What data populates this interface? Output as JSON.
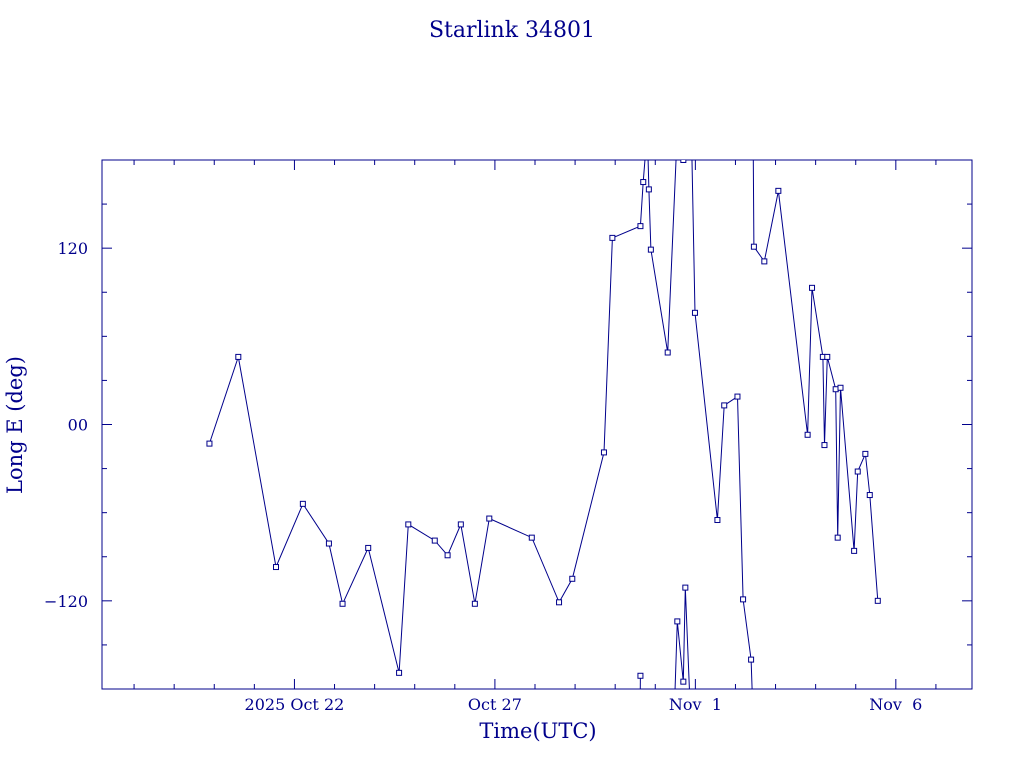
{
  "chart_data": {
    "type": "line",
    "title": "Starlink 34801",
    "xlabel": "Time(UTC)",
    "ylabel": "Long E (deg)",
    "color": "#00008b",
    "xlim": [
      -0.8,
      20.9
    ],
    "ylim": [
      -180,
      180
    ],
    "x_ticks": [
      {
        "x": 4.0,
        "label": "2025 Oct 22"
      },
      {
        "x": 9.0,
        "label": "Oct 27"
      },
      {
        "x": 14.0,
        "label": "Nov  1"
      },
      {
        "x": 19.0,
        "label": "Nov  6"
      }
    ],
    "y_ticks": [
      {
        "y": 120,
        "label": "120"
      },
      {
        "y": 0,
        "label": "00"
      },
      {
        "y": -120,
        "label": "−120"
      }
    ],
    "marker": "square",
    "series": [
      {
        "points": [
          [
            1.88,
            -13
          ],
          [
            2.6,
            46
          ],
          [
            3.54,
            -97
          ],
          [
            4.21,
            -54
          ],
          [
            4.86,
            -81
          ],
          [
            5.2,
            -122
          ],
          [
            5.84,
            -84
          ],
          [
            6.61,
            -169
          ],
          [
            6.84,
            -68
          ],
          [
            7.5,
            -79
          ],
          [
            7.82,
            -89
          ],
          [
            8.15,
            -68
          ],
          [
            8.5,
            -122
          ],
          [
            8.86,
            -64
          ],
          [
            9.92,
            -77
          ],
          [
            10.6,
            -121
          ],
          [
            10.93,
            -105
          ],
          [
            11.72,
            -19
          ],
          [
            11.93,
            127
          ],
          [
            12.63,
            135
          ],
          [
            12.7,
            165
          ],
          [
            12.8,
            200
          ]
        ]
      },
      {
        "points": [
          [
            12.62,
            -200
          ],
          [
            12.63,
            -171
          ]
        ]
      },
      {
        "points": [
          [
            12.8,
            200
          ],
          [
            12.84,
            160
          ],
          [
            12.89,
            119
          ],
          [
            13.31,
            49
          ],
          [
            13.55,
            200
          ],
          [
            13.7,
            180
          ],
          [
            13.9,
            200
          ]
        ]
      },
      {
        "points": [
          [
            13.47,
            -200
          ],
          [
            13.55,
            -134
          ],
          [
            13.7,
            -175
          ],
          [
            13.75,
            -111
          ],
          [
            13.88,
            -200
          ]
        ]
      },
      {
        "points": [
          [
            13.9,
            200
          ],
          [
            13.99,
            76
          ],
          [
            14.55,
            -65
          ],
          [
            14.72,
            13
          ],
          [
            15.05,
            19
          ],
          [
            15.19,
            -119
          ],
          [
            15.39,
            -160
          ],
          [
            15.44,
            -200
          ]
        ]
      },
      {
        "points": [
          [
            15.44,
            200
          ],
          [
            15.46,
            121
          ],
          [
            15.72,
            111
          ],
          [
            16.07,
            159
          ],
          [
            16.8,
            -7
          ],
          [
            16.91,
            93
          ],
          [
            17.18,
            46
          ],
          [
            17.22,
            -14
          ],
          [
            17.29,
            46
          ],
          [
            17.5,
            24
          ],
          [
            17.55,
            -77
          ],
          [
            17.62,
            25
          ],
          [
            17.96,
            -86
          ],
          [
            18.05,
            -32
          ],
          [
            18.24,
            -20
          ],
          [
            18.35,
            -48
          ],
          [
            18.55,
            -120
          ]
        ]
      }
    ]
  }
}
